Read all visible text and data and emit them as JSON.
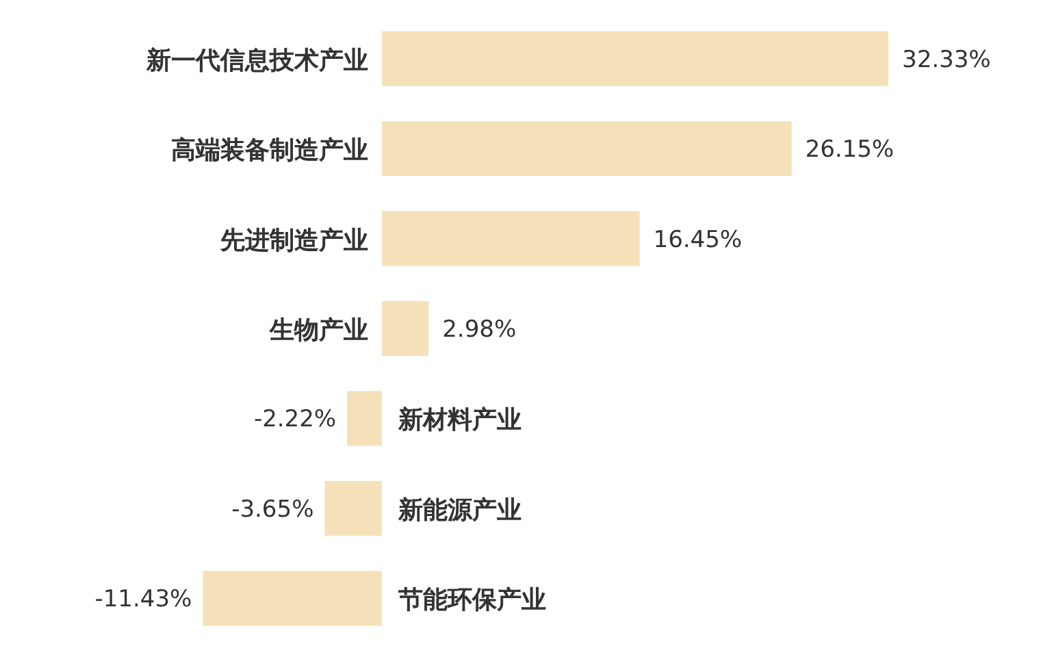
{
  "chart_data": {
    "type": "bar",
    "orientation": "horizontal",
    "color": "#f5e1b9",
    "categories": [
      "新一代信息技术产业",
      "高端装备制造产业",
      "先进制造产业",
      "生物产业",
      "新材料产业",
      "新能源产业",
      "节能环保产业"
    ],
    "values": [
      32.33,
      26.15,
      16.45,
      2.98,
      -2.22,
      -3.65,
      -11.43
    ],
    "value_labels": [
      "32.33%",
      "26.15%",
      "16.45%",
      "2.98%",
      "-2.22%",
      "-3.65%",
      "-11.43%"
    ]
  }
}
